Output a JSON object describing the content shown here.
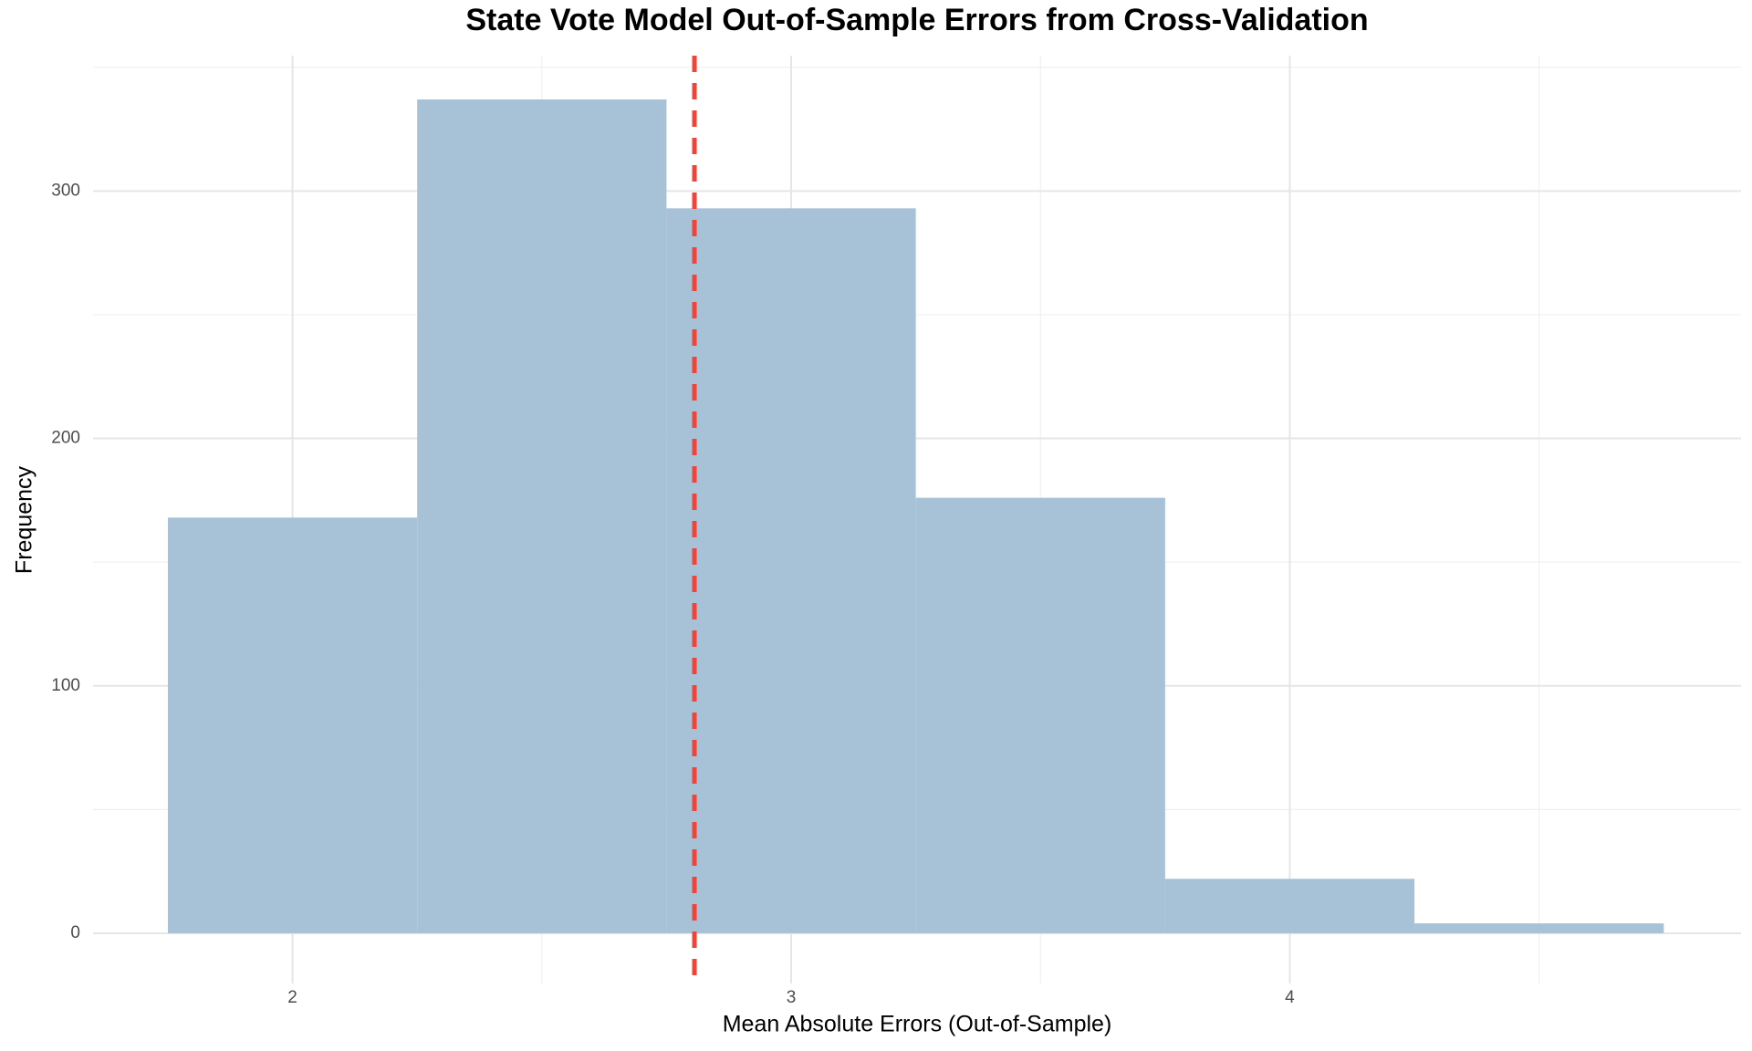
{
  "chart_data": {
    "type": "histogram",
    "title": "State Vote Model Out-of-Sample Errors from Cross-Validation",
    "x_label": "Mean Absolute Errors (Out-of-Sample)",
    "y_label": "Frequency",
    "bins": [
      1.75,
      2.25,
      2.75,
      3.25,
      3.75,
      4.25,
      4.75
    ],
    "counts": [
      168,
      337,
      293,
      176,
      22,
      4
    ],
    "color": "#a7c1d7",
    "mean_line": {
      "value": 2.806,
      "color": "#f44336",
      "style": "dashed"
    },
    "xlim": [
      1.6,
      4.905
    ],
    "ylim": [
      -20.3,
      354.7
    ],
    "xticks": [
      2,
      3,
      4
    ],
    "yticks": [
      0,
      100,
      200,
      300
    ],
    "xminorticks": [
      2.5,
      3.5,
      4.5
    ],
    "yminorticks": [
      50,
      150,
      250,
      350
    ],
    "grid": true
  }
}
